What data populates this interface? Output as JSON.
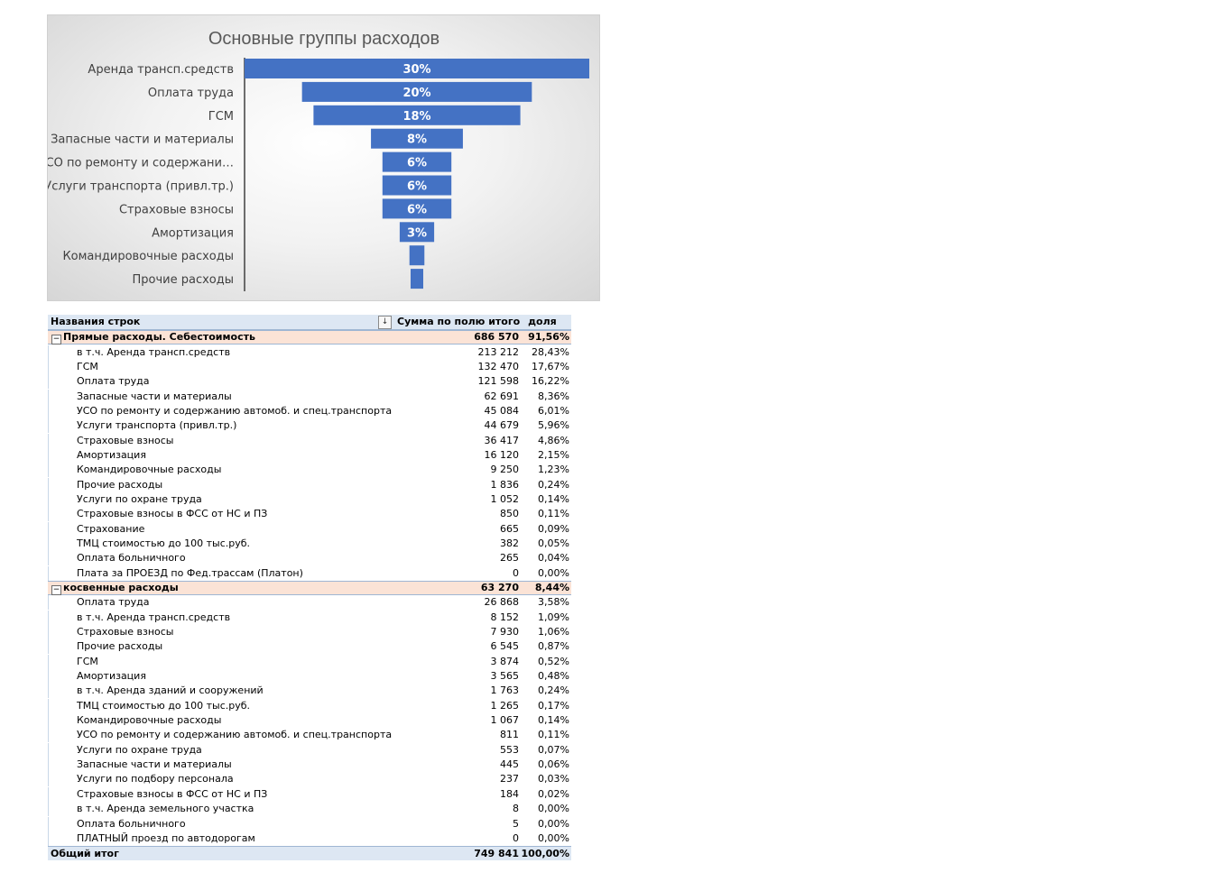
{
  "chart_data": {
    "type": "bar",
    "subtype": "funnel",
    "title": "Основные группы расходов",
    "categories": [
      "Аренда трансп.средств",
      "Оплата труда",
      "ГСМ",
      "Запасные части и материалы",
      "УСО по ремонту и содержани…",
      "Услуги транспорта (привл.тр.)",
      "Страховые взносы",
      "Амортизация",
      "Командировочные расходы",
      "Прочие расходы"
    ],
    "values": [
      30,
      20,
      18,
      8,
      6,
      6,
      6,
      3,
      1.3,
      1.1
    ],
    "data_labels": [
      "30%",
      "20%",
      "18%",
      "8%",
      "6%",
      "6%",
      "6%",
      "3%",
      "",
      ""
    ],
    "bar_color": "#4472c4",
    "legend": "none",
    "grid": false
  },
  "pivot": {
    "headers": {
      "row_labels": "Названия строк",
      "filter_icon": "↓",
      "sum": "Сумма по полю итого",
      "share": "доля"
    },
    "collapse_symbol": "−",
    "groups": [
      {
        "name": "Прямые расходы. Себестоимость",
        "sum": "686 570",
        "share": "91,56%",
        "items": [
          {
            "name": "в т.ч. Аренда трансп.средств",
            "sum": "213 212",
            "share": "28,43%"
          },
          {
            "name": "ГСМ",
            "sum": "132 470",
            "share": "17,67%"
          },
          {
            "name": "Оплата труда",
            "sum": "121 598",
            "share": "16,22%"
          },
          {
            "name": "Запасные части и материалы",
            "sum": "62 691",
            "share": "8,36%"
          },
          {
            "name": "УСО по ремонту и содержанию автомоб. и спец.транспорта",
            "sum": "45 084",
            "share": "6,01%"
          },
          {
            "name": "Услуги транспорта (привл.тр.)",
            "sum": "44 679",
            "share": "5,96%"
          },
          {
            "name": "Страховые взносы",
            "sum": "36 417",
            "share": "4,86%"
          },
          {
            "name": "Амортизация",
            "sum": "16 120",
            "share": "2,15%"
          },
          {
            "name": "Командировочные расходы",
            "sum": "9 250",
            "share": "1,23%"
          },
          {
            "name": "Прочие расходы",
            "sum": "1 836",
            "share": "0,24%"
          },
          {
            "name": "Услуги по охране труда",
            "sum": "1 052",
            "share": "0,14%"
          },
          {
            "name": "Страховые взносы в ФСС от НС и ПЗ",
            "sum": "850",
            "share": "0,11%"
          },
          {
            "name": "Страхование",
            "sum": "665",
            "share": "0,09%"
          },
          {
            "name": "ТМЦ стоимостью до 100 тыс.руб.",
            "sum": "382",
            "share": "0,05%"
          },
          {
            "name": "Оплата больничного",
            "sum": "265",
            "share": "0,04%"
          },
          {
            "name": "Плата за ПРОЕЗД по Фед.трассам (Платон)",
            "sum": "0",
            "share": "0,00%"
          }
        ]
      },
      {
        "name": "косвенные расходы",
        "sum": "63 270",
        "share": "8,44%",
        "items": [
          {
            "name": "Оплата труда",
            "sum": "26 868",
            "share": "3,58%"
          },
          {
            "name": "в т.ч. Аренда трансп.средств",
            "sum": "8 152",
            "share": "1,09%"
          },
          {
            "name": "Страховые взносы",
            "sum": "7 930",
            "share": "1,06%"
          },
          {
            "name": "Прочие расходы",
            "sum": "6 545",
            "share": "0,87%"
          },
          {
            "name": "ГСМ",
            "sum": "3 874",
            "share": "0,52%"
          },
          {
            "name": "Амортизация",
            "sum": "3 565",
            "share": "0,48%"
          },
          {
            "name": "в т.ч. Аренда зданий и сооружений",
            "sum": "1 763",
            "share": "0,24%"
          },
          {
            "name": "ТМЦ стоимостью до 100 тыс.руб.",
            "sum": "1 265",
            "share": "0,17%"
          },
          {
            "name": "Командировочные расходы",
            "sum": "1 067",
            "share": "0,14%"
          },
          {
            "name": "УСО по ремонту и содержанию автомоб. и спец.транспорта",
            "sum": "811",
            "share": "0,11%"
          },
          {
            "name": "Услуги по охране труда",
            "sum": "553",
            "share": "0,07%"
          },
          {
            "name": "Запасные части и материалы",
            "sum": "445",
            "share": "0,06%"
          },
          {
            "name": "Услуги по подбору персонала",
            "sum": "237",
            "share": "0,03%"
          },
          {
            "name": "Страховые взносы в ФСС от НС и ПЗ",
            "sum": "184",
            "share": "0,02%"
          },
          {
            "name": "в т.ч. Аренда земельного участка",
            "sum": "8",
            "share": "0,00%"
          },
          {
            "name": "Оплата больничного",
            "sum": "5",
            "share": "0,00%"
          },
          {
            "name": "ПЛАТНЫЙ проезд по автодорогам",
            "sum": "0",
            "share": "0,00%"
          }
        ]
      }
    ],
    "total": {
      "label": "Общий итог",
      "sum": "749 841",
      "share": "100,00%"
    }
  }
}
